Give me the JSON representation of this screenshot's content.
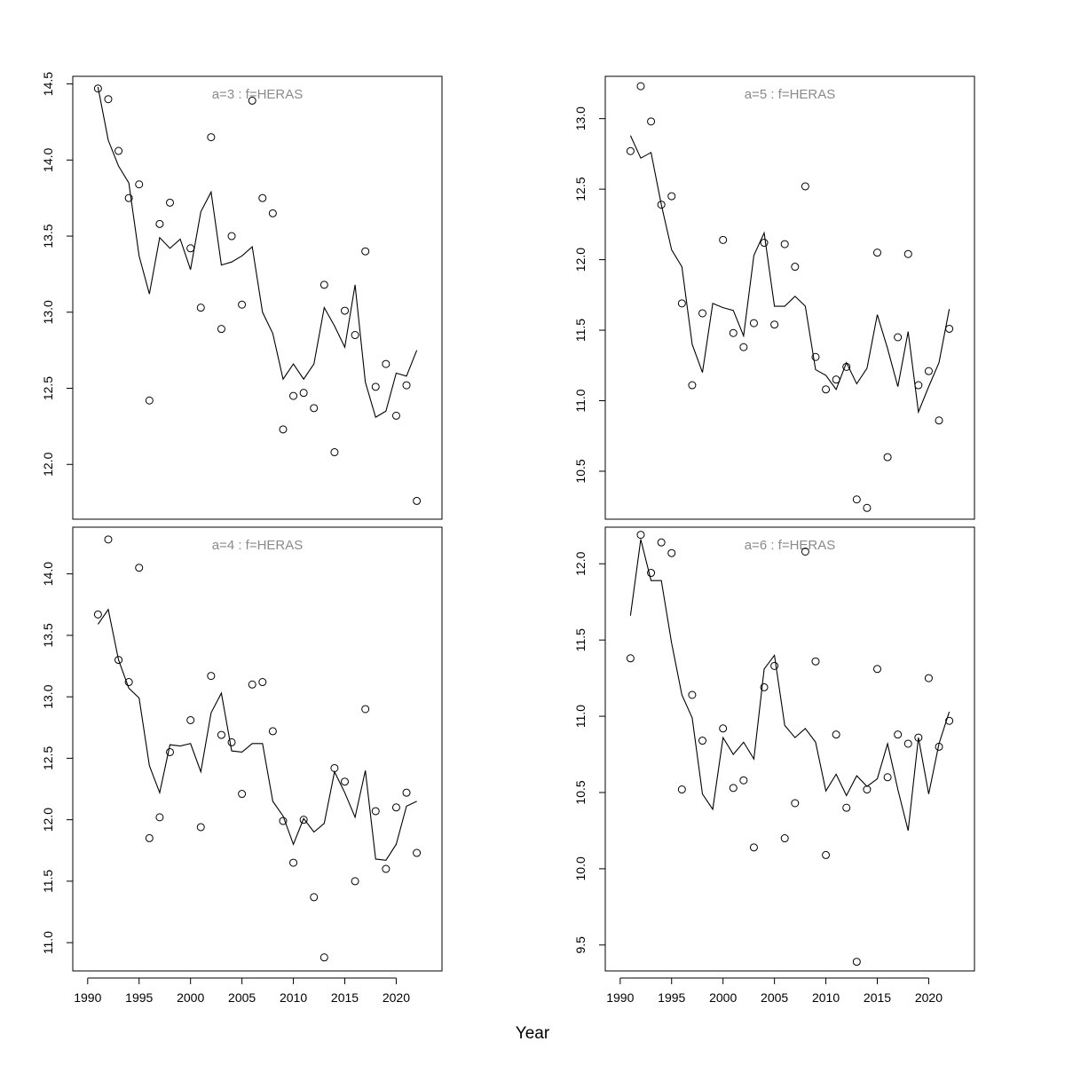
{
  "xlabel": "Year",
  "x_axis": {
    "ticks": [
      1990,
      1995,
      2000,
      2005,
      2010,
      2015,
      2020
    ],
    "range": [
      1988.55,
      2024.45
    ]
  },
  "chart_data": [
    {
      "type": "line",
      "title": "a=3  :  f=HERAS",
      "x": [
        1991,
        1992,
        1993,
        1994,
        1995,
        1996,
        1997,
        1998,
        1999,
        2000,
        2001,
        2002,
        2003,
        2004,
        2005,
        2006,
        2007,
        2008,
        2009,
        2010,
        2011,
        2012,
        2013,
        2014,
        2015,
        2016,
        2017,
        2018,
        2019,
        2020,
        2021,
        2022
      ],
      "yticks": [
        "12.0",
        "12.5",
        "13.0",
        "13.5",
        "14.0",
        "14.5"
      ],
      "ylim": [
        11.64,
        14.55
      ],
      "series": [
        {
          "mark": "points",
          "values": [
            14.47,
            14.4,
            14.06,
            13.75,
            13.84,
            12.42,
            13.58,
            13.72,
            null,
            13.42,
            13.03,
            14.15,
            12.89,
            13.5,
            13.05,
            14.39,
            13.75,
            13.65,
            12.23,
            12.45,
            12.47,
            12.37,
            13.18,
            12.08,
            13.01,
            12.85,
            13.4,
            12.51,
            12.66,
            12.32,
            12.52,
            11.76
          ]
        },
        {
          "mark": "line",
          "values": [
            14.48,
            14.13,
            13.96,
            13.85,
            13.37,
            13.12,
            13.49,
            13.42,
            13.48,
            13.28,
            13.66,
            13.79,
            13.31,
            13.33,
            13.37,
            13.43,
            13.0,
            12.86,
            12.56,
            12.66,
            12.56,
            12.66,
            13.03,
            12.91,
            12.77,
            13.18,
            12.54,
            12.31,
            12.35,
            12.6,
            12.58,
            12.75
          ]
        }
      ]
    },
    {
      "type": "line",
      "title": "a=5  :  f=HERAS",
      "x": [
        1991,
        1992,
        1993,
        1994,
        1995,
        1996,
        1997,
        1998,
        1999,
        2000,
        2001,
        2002,
        2003,
        2004,
        2005,
        2006,
        2007,
        2008,
        2009,
        2010,
        2011,
        2012,
        2013,
        2014,
        2015,
        2016,
        2017,
        2018,
        2019,
        2020,
        2021,
        2022
      ],
      "yticks": [
        "10.5",
        "11.0",
        "11.5",
        "12.0",
        "12.5",
        "13.0"
      ],
      "ylim": [
        10.16,
        13.3
      ],
      "series": [
        {
          "mark": "points",
          "values": [
            12.77,
            13.23,
            12.98,
            12.39,
            12.45,
            11.69,
            11.11,
            11.62,
            null,
            12.14,
            11.48,
            11.38,
            11.55,
            12.12,
            11.54,
            12.11,
            11.95,
            12.52,
            11.31,
            11.08,
            11.15,
            11.24,
            10.3,
            10.24,
            12.05,
            10.6,
            11.45,
            12.04,
            11.11,
            11.21,
            10.86,
            11.51
          ]
        },
        {
          "mark": "line",
          "values": [
            12.88,
            12.72,
            12.76,
            12.39,
            12.07,
            11.95,
            11.4,
            11.2,
            11.69,
            11.66,
            11.64,
            11.46,
            12.03,
            12.19,
            11.67,
            11.67,
            11.74,
            11.67,
            11.22,
            11.18,
            11.08,
            11.27,
            11.12,
            11.23,
            11.61,
            11.37,
            11.1,
            11.49,
            10.92,
            11.1,
            11.27,
            11.65
          ]
        }
      ]
    },
    {
      "type": "line",
      "title": "a=4  :  f=HERAS",
      "x": [
        1991,
        1992,
        1993,
        1994,
        1995,
        1996,
        1997,
        1998,
        1999,
        2000,
        2001,
        2002,
        2003,
        2004,
        2005,
        2006,
        2007,
        2008,
        2009,
        2010,
        2011,
        2012,
        2013,
        2014,
        2015,
        2016,
        2017,
        2018,
        2019,
        2020,
        2021,
        2022
      ],
      "yticks": [
        "11.0",
        "11.5",
        "12.0",
        "12.5",
        "13.0",
        "13.5",
        "14.0"
      ],
      "ylim": [
        10.77,
        14.38
      ],
      "series": [
        {
          "mark": "points",
          "values": [
            13.67,
            14.28,
            13.3,
            13.12,
            14.05,
            11.85,
            12.02,
            12.55,
            null,
            12.81,
            11.94,
            13.17,
            12.69,
            12.63,
            12.21,
            13.1,
            13.12,
            12.72,
            11.99,
            11.65,
            12.0,
            11.37,
            10.88,
            12.42,
            12.31,
            11.5,
            12.9,
            12.07,
            11.6,
            12.1,
            12.22,
            11.73
          ]
        },
        {
          "mark": "line",
          "values": [
            13.59,
            13.71,
            13.3,
            13.07,
            12.99,
            12.44,
            12.22,
            12.61,
            12.6,
            12.62,
            12.39,
            12.87,
            13.03,
            12.56,
            12.55,
            12.62,
            12.62,
            12.15,
            12.03,
            11.8,
            12.01,
            11.9,
            11.97,
            12.39,
            12.22,
            12.02,
            12.4,
            11.68,
            11.67,
            11.8,
            12.11,
            12.15
          ]
        }
      ]
    },
    {
      "type": "line",
      "title": "a=6  :  f=HERAS",
      "x": [
        1991,
        1992,
        1993,
        1994,
        1995,
        1996,
        1997,
        1998,
        1999,
        2000,
        2001,
        2002,
        2003,
        2004,
        2005,
        2006,
        2007,
        2008,
        2009,
        2010,
        2011,
        2012,
        2013,
        2014,
        2015,
        2016,
        2017,
        2018,
        2019,
        2020,
        2021,
        2022
      ],
      "yticks": [
        "9.5",
        "10.0",
        "10.5",
        "11.0",
        "11.5",
        "12.0"
      ],
      "ylim": [
        9.33,
        12.24
      ],
      "series": [
        {
          "mark": "points",
          "values": [
            11.38,
            12.19,
            11.94,
            12.14,
            12.07,
            10.52,
            11.14,
            10.84,
            null,
            10.92,
            10.53,
            10.58,
            10.14,
            11.19,
            11.33,
            10.2,
            10.43,
            12.08,
            11.36,
            10.09,
            10.88,
            10.4,
            9.39,
            10.52,
            11.31,
            10.6,
            10.88,
            10.82,
            10.86,
            11.25,
            10.8,
            10.97
          ]
        },
        {
          "mark": "line",
          "values": [
            11.66,
            12.16,
            11.89,
            11.89,
            11.48,
            11.14,
            10.99,
            10.49,
            10.39,
            10.86,
            10.75,
            10.83,
            10.72,
            11.31,
            11.4,
            10.94,
            10.86,
            10.92,
            10.83,
            10.51,
            10.62,
            10.48,
            10.61,
            10.54,
            10.59,
            10.82,
            10.52,
            10.25,
            10.86,
            10.49,
            10.82,
            11.03
          ]
        }
      ]
    }
  ]
}
